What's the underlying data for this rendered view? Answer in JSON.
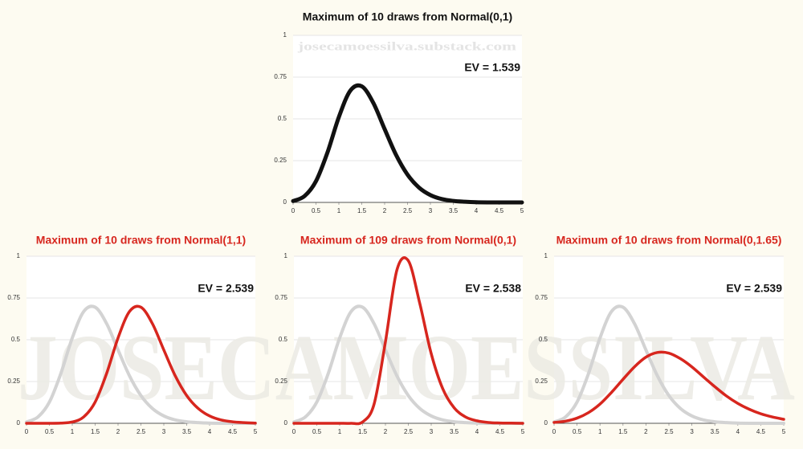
{
  "watermark": "JOSECAMOESSILVA",
  "chart_data": [
    {
      "type": "line",
      "title": "Maximum of 10 draws from Normal(0,1)",
      "annotation": "EV = 1.539",
      "watermark": "josecamoessilva.substack.com",
      "x": [
        0,
        0.25,
        0.5,
        0.75,
        1,
        1.25,
        1.5,
        1.75,
        2,
        2.25,
        2.5,
        2.75,
        3,
        3.25,
        3.5,
        3.75,
        4,
        4.25,
        4.5,
        4.75,
        5
      ],
      "xlim": [
        0,
        5
      ],
      "xticks": [
        0,
        0.5,
        1,
        1.5,
        2,
        2.5,
        3,
        3.5,
        4,
        4.5,
        5
      ],
      "ylim": [
        0,
        1
      ],
      "yticks": [
        0,
        0.25,
        0.5,
        0.75,
        1
      ],
      "grid": true,
      "title_color": "#111111",
      "series": [
        {
          "color": "#111111",
          "values": [
            0.008,
            0.038,
            0.127,
            0.298,
            0.511,
            0.669,
            0.695,
            0.597,
            0.439,
            0.284,
            0.166,
            0.089,
            0.044,
            0.02,
            0.009,
            0.004,
            0.001,
            0.0,
            0.0,
            0.0,
            0.0
          ]
        }
      ]
    },
    {
      "type": "line",
      "title": "Maximum of 10 draws from Normal(1,1)",
      "annotation": "EV = 2.539",
      "x": [
        0,
        0.25,
        0.5,
        0.75,
        1,
        1.25,
        1.5,
        1.75,
        2,
        2.25,
        2.5,
        2.75,
        3,
        3.25,
        3.5,
        3.75,
        4,
        4.25,
        4.5,
        4.75,
        5
      ],
      "xlim": [
        0,
        5
      ],
      "xticks": [
        0,
        0.5,
        1,
        1.5,
        2,
        2.5,
        3,
        3.5,
        4,
        4.5,
        5
      ],
      "ylim": [
        0,
        1
      ],
      "yticks": [
        0,
        0.25,
        0.5,
        0.75,
        1
      ],
      "grid": true,
      "title_color": "#d7261e",
      "series": [
        {
          "color": "#d3d3d3",
          "values": [
            0.008,
            0.038,
            0.127,
            0.298,
            0.511,
            0.669,
            0.695,
            0.597,
            0.439,
            0.284,
            0.166,
            0.089,
            0.044,
            0.02,
            0.009,
            0.004,
            0.001,
            0.0,
            0.0,
            0.0,
            0.0
          ]
        },
        {
          "color": "#d7261e",
          "values": [
            0.0,
            0.0,
            0.0,
            0.001,
            0.008,
            0.038,
            0.127,
            0.298,
            0.511,
            0.669,
            0.695,
            0.597,
            0.439,
            0.284,
            0.166,
            0.089,
            0.044,
            0.02,
            0.009,
            0.004,
            0.001
          ]
        }
      ]
    },
    {
      "type": "line",
      "title": "Maximum of 109 draws from Normal(0,1)",
      "annotation": "EV = 2.538",
      "x": [
        0,
        0.25,
        0.5,
        0.75,
        1,
        1.25,
        1.5,
        1.75,
        2,
        2.25,
        2.5,
        2.75,
        3,
        3.25,
        3.5,
        3.75,
        4,
        4.25,
        4.5,
        4.75,
        5
      ],
      "xlim": [
        0,
        5
      ],
      "xticks": [
        0,
        0.5,
        1,
        1.5,
        2,
        2.5,
        3,
        3.5,
        4,
        4.5,
        5
      ],
      "ylim": [
        0,
        1
      ],
      "yticks": [
        0,
        0.25,
        0.5,
        0.75,
        1
      ],
      "grid": true,
      "title_color": "#d7261e",
      "series": [
        {
          "color": "#d3d3d3",
          "values": [
            0.008,
            0.038,
            0.127,
            0.298,
            0.511,
            0.669,
            0.695,
            0.597,
            0.439,
            0.284,
            0.166,
            0.089,
            0.044,
            0.02,
            0.009,
            0.004,
            0.001,
            0.0,
            0.0,
            0.0,
            0.0
          ]
        },
        {
          "color": "#d7261e",
          "values": [
            0.0,
            0.0,
            0.0,
            0.0,
            0.0,
            0.0,
            0.008,
            0.113,
            0.488,
            0.917,
            0.973,
            0.718,
            0.417,
            0.208,
            0.093,
            0.038,
            0.015,
            0.005,
            0.002,
            0.001,
            0.0
          ]
        }
      ]
    },
    {
      "type": "line",
      "title": "Maximum of 10 draws from Normal(0,1.65)",
      "annotation": "EV = 2.539",
      "x": [
        0,
        0.25,
        0.5,
        0.75,
        1,
        1.25,
        1.5,
        1.75,
        2,
        2.25,
        2.5,
        2.75,
        3,
        3.25,
        3.5,
        3.75,
        4,
        4.25,
        4.5,
        4.75,
        5
      ],
      "xlim": [
        0,
        5
      ],
      "xticks": [
        0,
        0.5,
        1,
        1.5,
        2,
        2.5,
        3,
        3.5,
        4,
        4.5,
        5
      ],
      "ylim": [
        0,
        1
      ],
      "yticks": [
        0,
        0.25,
        0.5,
        0.75,
        1
      ],
      "grid": true,
      "title_color": "#d7261e",
      "series": [
        {
          "color": "#d3d3d3",
          "values": [
            0.008,
            0.038,
            0.127,
            0.298,
            0.511,
            0.669,
            0.695,
            0.597,
            0.439,
            0.284,
            0.166,
            0.089,
            0.044,
            0.02,
            0.009,
            0.004,
            0.001,
            0.0,
            0.0,
            0.0,
            0.0
          ]
        },
        {
          "color": "#d7261e",
          "values": [
            0.005,
            0.013,
            0.031,
            0.064,
            0.115,
            0.185,
            0.263,
            0.338,
            0.396,
            0.424,
            0.42,
            0.387,
            0.338,
            0.278,
            0.219,
            0.164,
            0.119,
            0.084,
            0.057,
            0.038,
            0.024
          ]
        }
      ]
    }
  ]
}
